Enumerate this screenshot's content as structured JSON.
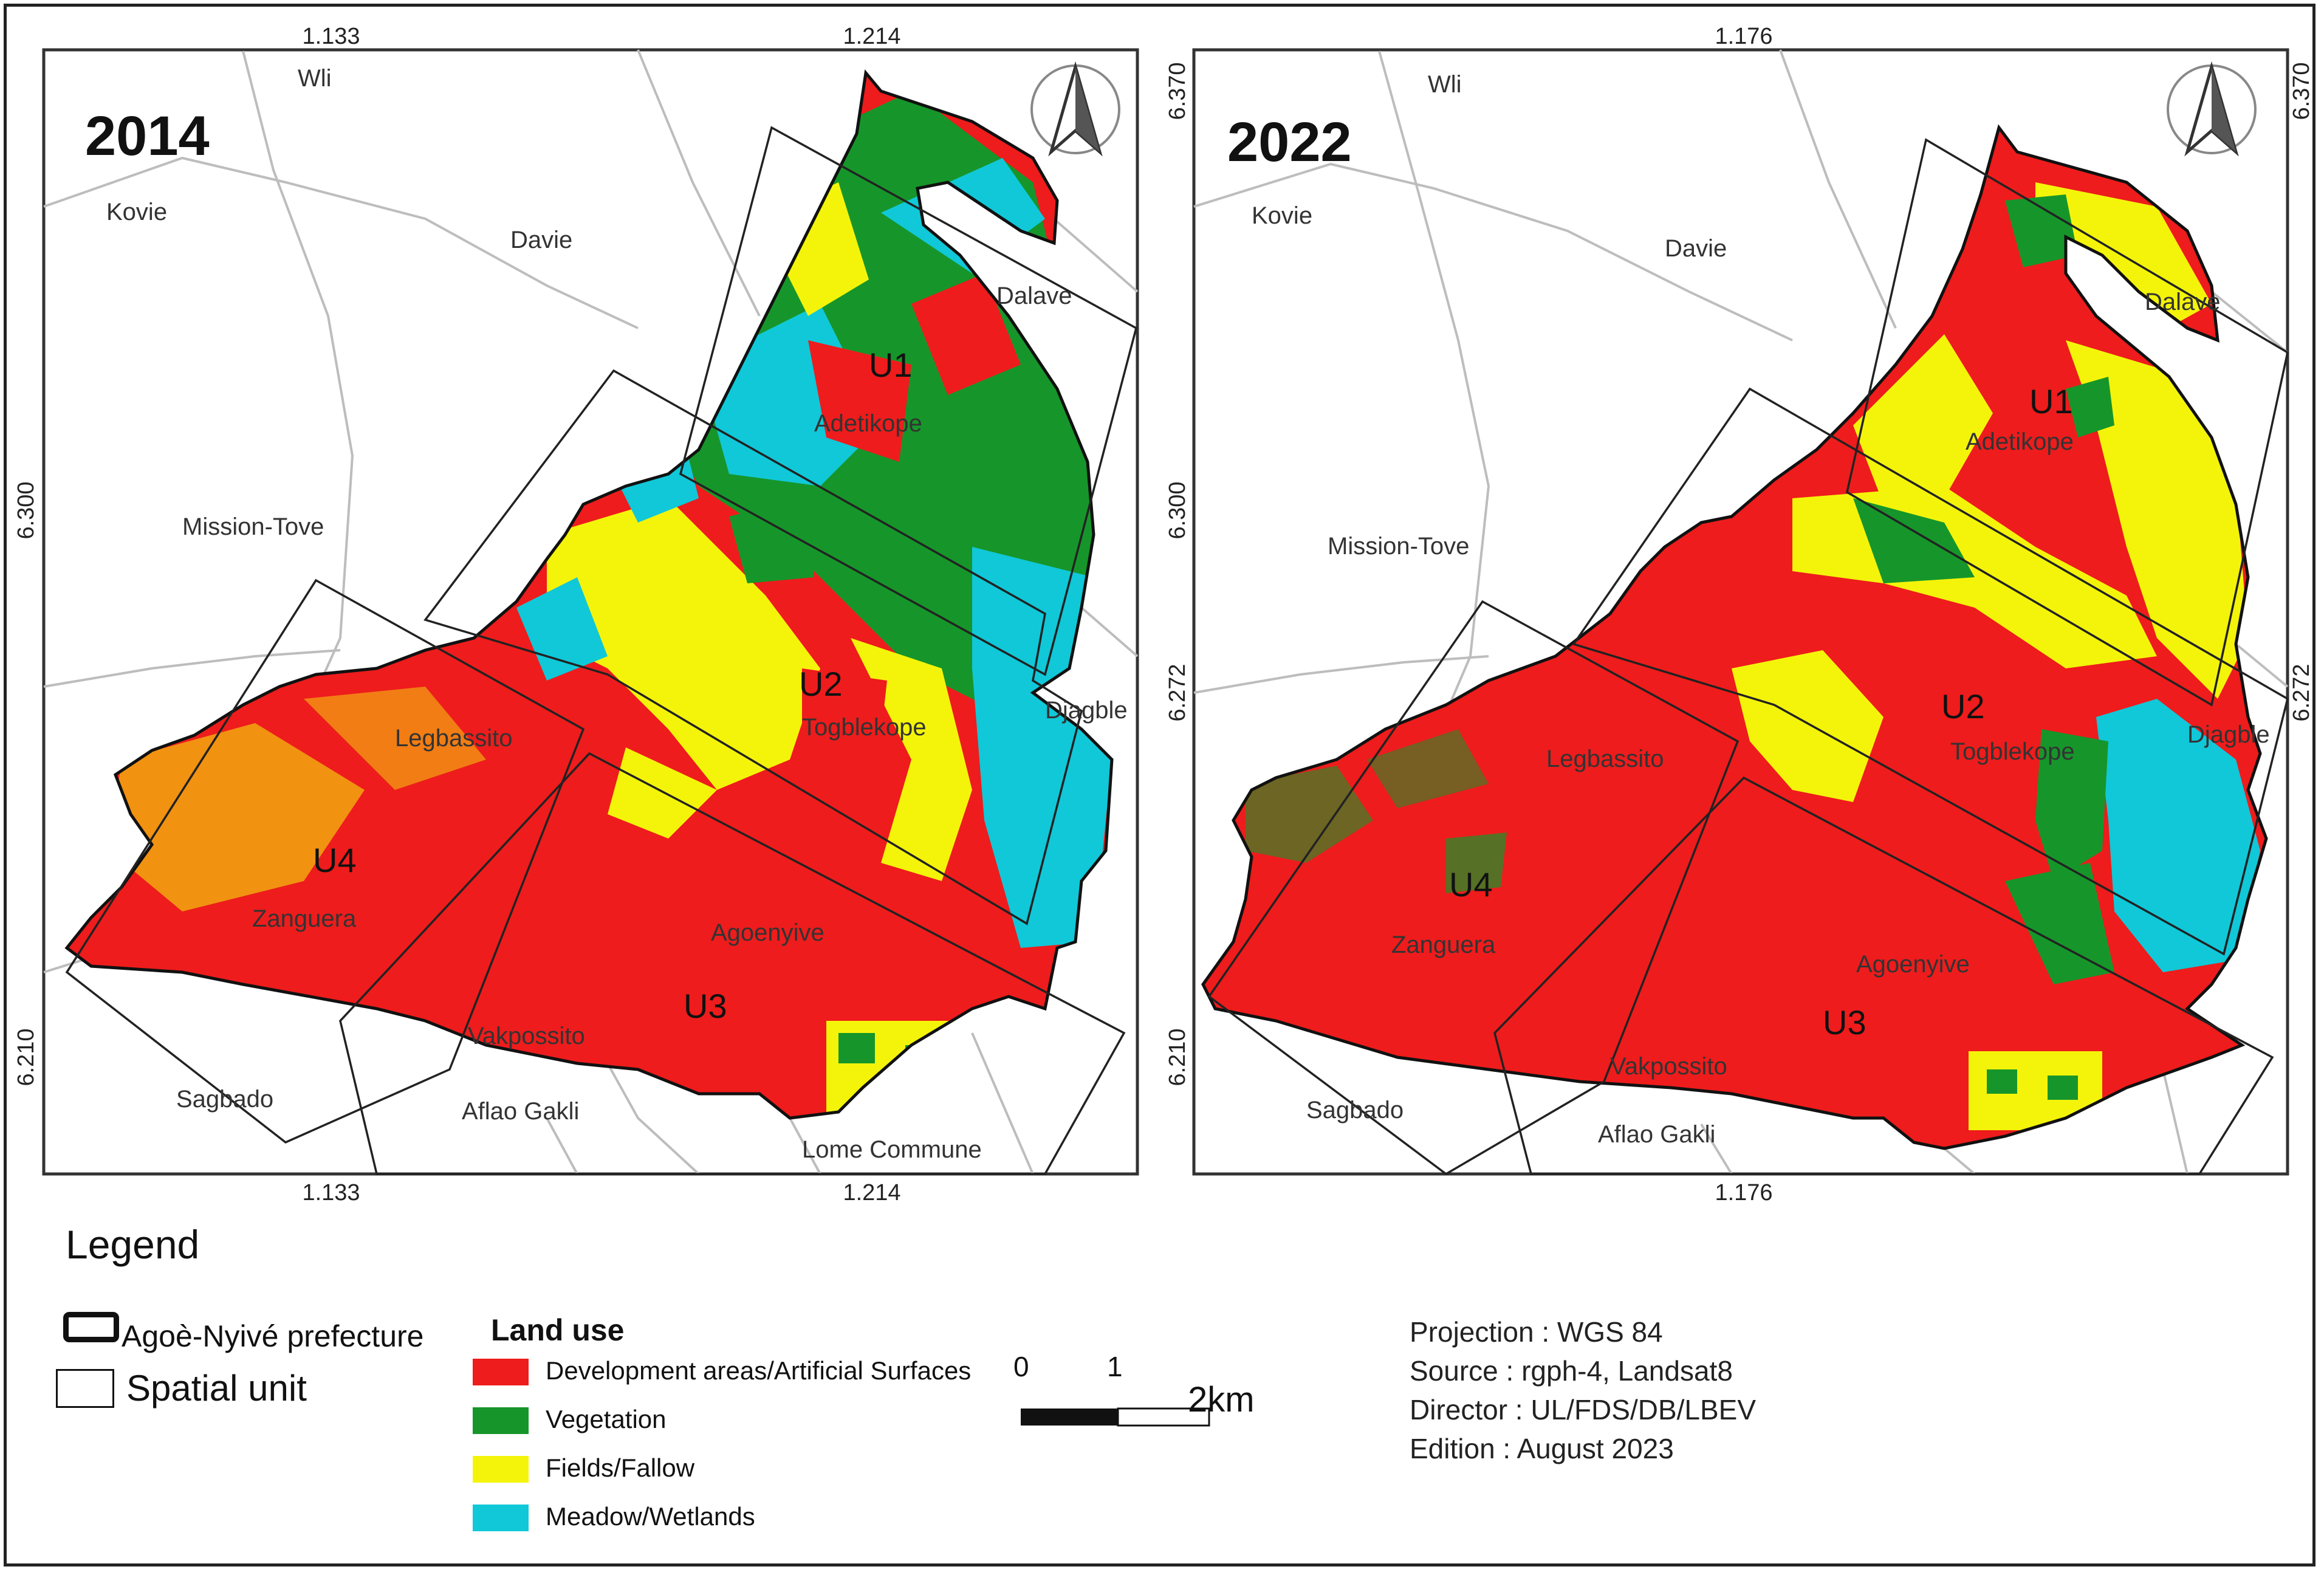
{
  "panels": [
    {
      "year": "2014",
      "top_ticks": [
        "1.133",
        "1.214"
      ],
      "bottom_ticks": [
        "1.133",
        "1.214"
      ],
      "left_ticks": [
        "6.300",
        "6.210"
      ],
      "right_ticks": [],
      "places": [
        "Wli",
        "Kovie",
        "Davie",
        "Dalave",
        "Mission-Tove",
        "Djagble",
        "Legbassito",
        "Zanguera",
        "Agoenyive",
        "Vakpossito",
        "Sagbado",
        "Aflao Gakli",
        "Lome Commune",
        "Adetikope",
        "Togblekope"
      ],
      "units": [
        "U1",
        "U2",
        "U3",
        "U4"
      ]
    },
    {
      "year": "2022",
      "top_ticks": [
        "1.176"
      ],
      "bottom_ticks": [
        "1.176"
      ],
      "left_ticks": [
        "6.370",
        "6.300",
        "6.272",
        "6.210"
      ],
      "right_ticks": [
        "6.370",
        "6.272"
      ],
      "places": [
        "Wli",
        "Kovie",
        "Davie",
        "Dalave",
        "Mission-Tove",
        "Djagble",
        "Legbassito",
        "Zanguera",
        "Agoenyive",
        "Vakpossito",
        "Sagbado",
        "Aflao Gakli",
        "Adetikope",
        "Togblekope"
      ],
      "units": [
        "U1",
        "U2",
        "U3",
        "U4"
      ]
    }
  ],
  "legend": {
    "title": "Legend",
    "prefecture": "Agoè-Nyivé prefecture",
    "spatial_unit": "Spatial unit",
    "land_use_title": "Land use",
    "land_use": [
      {
        "label": "Development areas/Artificial Surfaces",
        "color": "#ee1c1c"
      },
      {
        "label": "Vegetation",
        "color": "#16962a"
      },
      {
        "label": "Fields/Fallow",
        "color": "#f4f40a"
      },
      {
        "label": "Meadow/Wetlands",
        "color": "#10c8d8"
      }
    ]
  },
  "scale": {
    "labels": [
      "0",
      "1",
      "2km"
    ]
  },
  "meta": [
    "Projection : WGS 84",
    "Source : rgph-4, Landsat8",
    "Director : UL/FDS/DB/LBEV",
    "Edition : August 2023"
  ],
  "colors": {
    "dev": "#ee1c1c",
    "veg": "#16962a",
    "fields": "#f4f40a",
    "wet": "#10c8d8",
    "roads": "#b8b8b8"
  }
}
